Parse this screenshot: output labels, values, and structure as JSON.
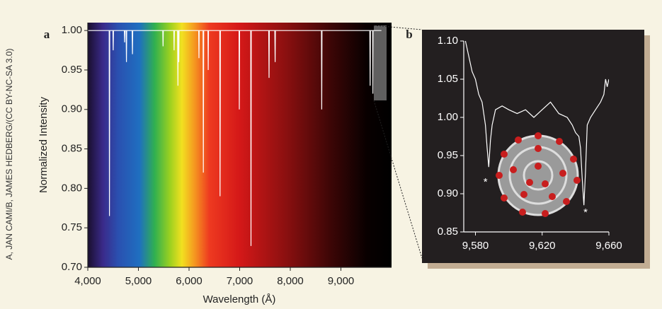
{
  "credit": "A, JAN CAMI/B, JAMES HEDBERG/(CC BY-NC-SA 3.0)",
  "chart_data": [
    {
      "type": "line",
      "panel_label": "a",
      "x_label": "Wavelength  (Å)",
      "y_label": "Normalized Intensity",
      "xlim": [
        4000,
        10000
      ],
      "ylim": [
        0.7,
        1.01
      ],
      "xticks": [
        {
          "value": 4000,
          "label": "4,000"
        },
        {
          "value": 5000,
          "label": "5,000"
        },
        {
          "value": 6000,
          "label": "6,000"
        },
        {
          "value": 7000,
          "label": "7,000"
        },
        {
          "value": 8000,
          "label": "8,000"
        },
        {
          "value": 9000,
          "label": "9,000"
        }
      ],
      "yticks": [
        {
          "value": 0.7,
          "label": "0.70"
        },
        {
          "value": 0.75,
          "label": "0.75"
        },
        {
          "value": 0.8,
          "label": "0.80"
        },
        {
          "value": 0.85,
          "label": "0.85"
        },
        {
          "value": 0.9,
          "label": "0.90"
        },
        {
          "value": 0.95,
          "label": "0.95"
        },
        {
          "value": 1.0,
          "label": "1.00"
        }
      ],
      "color": "#ffffff",
      "x": [
        4000,
        4422,
        4428,
        4434,
        4496,
        4502,
        4508,
        4721,
        4727,
        4733,
        4757,
        4763,
        4769,
        4876,
        4882,
        4888,
        5481,
        5487,
        5493,
        5699,
        5705,
        5711,
        5774,
        5780,
        5786,
        5791,
        5797,
        5803,
        6190,
        6196,
        6202,
        6277,
        6283,
        6289,
        6373,
        6379,
        6385,
        6607,
        6613,
        6619,
        6987,
        6993,
        6999,
        7218,
        7224,
        7230,
        7574,
        7580,
        7586,
        7694,
        7700,
        7706,
        8615,
        8621,
        8627,
        9571,
        9577,
        9583,
        9626,
        9632,
        9638,
        9800
      ],
      "values": [
        1.0,
        1.0,
        0.765,
        1.0,
        1.0,
        0.975,
        1.0,
        1.0,
        0.985,
        1.0,
        1.0,
        0.96,
        1.0,
        1.0,
        0.97,
        1.0,
        1.0,
        0.98,
        1.0,
        1.0,
        0.975,
        1.0,
        1.0,
        0.93,
        1.0,
        1.0,
        0.96,
        1.0,
        1.0,
        0.965,
        1.0,
        1.0,
        0.82,
        1.0,
        1.0,
        0.95,
        1.0,
        1.0,
        0.79,
        1.0,
        1.0,
        0.9,
        1.0,
        1.0,
        0.727,
        1.0,
        1.0,
        0.94,
        1.0,
        1.0,
        0.96,
        1.0,
        1.0,
        0.9,
        1.0,
        1.0,
        0.93,
        1.0,
        1.0,
        0.92,
        1.0,
        1.0
      ]
    },
    {
      "type": "line",
      "panel_label": "b",
      "xlim": [
        9573,
        9660
      ],
      "ylim": [
        0.85,
        1.1
      ],
      "xticks": [
        {
          "value": 9580,
          "label": "9,580"
        },
        {
          "value": 9620,
          "label": "9,620"
        },
        {
          "value": 9660,
          "label": "9,660"
        }
      ],
      "yticks": [
        {
          "value": 0.85,
          "label": "0.85"
        },
        {
          "value": 0.9,
          "label": "0.90"
        },
        {
          "value": 0.95,
          "label": "0.95"
        },
        {
          "value": 1.0,
          "label": "1.00"
        },
        {
          "value": 1.05,
          "label": "1.05"
        },
        {
          "value": 1.1,
          "label": "1.10"
        }
      ],
      "color": "#ffffff",
      "annotations": [
        "*",
        "*"
      ],
      "x": [
        9574,
        9576,
        9578,
        9580,
        9582,
        9584,
        9586,
        9587,
        9588,
        9589,
        9590,
        9592,
        9596,
        9600,
        9605,
        9610,
        9615,
        9620,
        9625,
        9630,
        9635,
        9638,
        9640,
        9642,
        9643,
        9644,
        9645,
        9646,
        9647,
        9649,
        9652,
        9655,
        9657,
        9658,
        9659,
        9660
      ],
      "values": [
        1.1,
        1.08,
        1.06,
        1.05,
        1.03,
        1.02,
        0.99,
        0.96,
        0.935,
        0.97,
        0.99,
        1.01,
        1.015,
        1.01,
        1.005,
        1.01,
        1.0,
        1.01,
        1.02,
        1.005,
        1.0,
        0.99,
        0.98,
        0.975,
        0.96,
        0.92,
        0.885,
        0.93,
        0.99,
        1.0,
        1.01,
        1.02,
        1.03,
        1.05,
        1.04,
        1.05
      ]
    }
  ]
}
